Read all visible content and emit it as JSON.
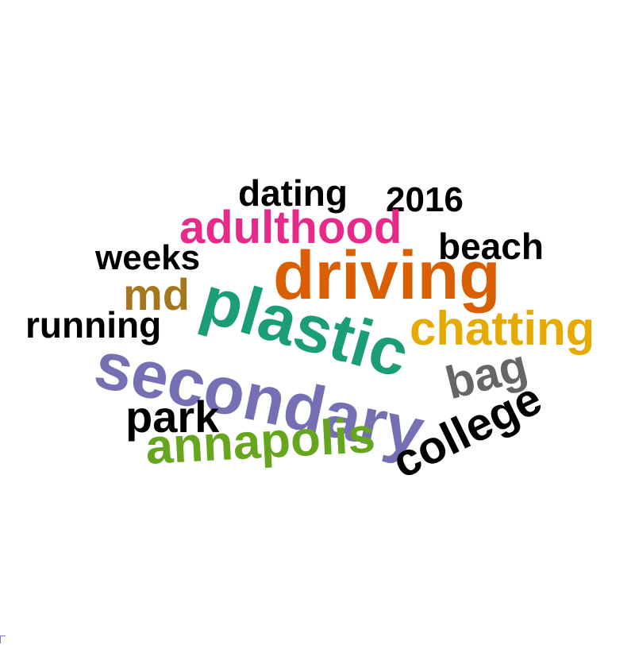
{
  "words": [
    {
      "id": "dating",
      "text": "dating",
      "color": "#000000"
    },
    {
      "id": "2016",
      "text": "2016",
      "color": "#000000"
    },
    {
      "id": "adulthood",
      "text": "adulthood",
      "color": "#E7298A"
    },
    {
      "id": "beach",
      "text": "beach",
      "color": "#000000"
    },
    {
      "id": "weeks",
      "text": "weeks",
      "color": "#000000"
    },
    {
      "id": "driving",
      "text": "driving",
      "color": "#D95F02"
    },
    {
      "id": "md",
      "text": "md",
      "color": "#A6761D"
    },
    {
      "id": "plastic",
      "text": "plastic",
      "color": "#1B9E77"
    },
    {
      "id": "running",
      "text": "running",
      "color": "#000000"
    },
    {
      "id": "chatting",
      "text": "chatting",
      "color": "#E6AB02"
    },
    {
      "id": "secondary",
      "text": "secondary",
      "color": "#7570B3"
    },
    {
      "id": "bag",
      "text": "bag",
      "color": "#666666"
    },
    {
      "id": "park",
      "text": "park",
      "color": "#000000"
    },
    {
      "id": "annapolis",
      "text": "annapolis",
      "color": "#66A61E"
    },
    {
      "id": "college",
      "text": "college",
      "color": "#000000"
    }
  ]
}
